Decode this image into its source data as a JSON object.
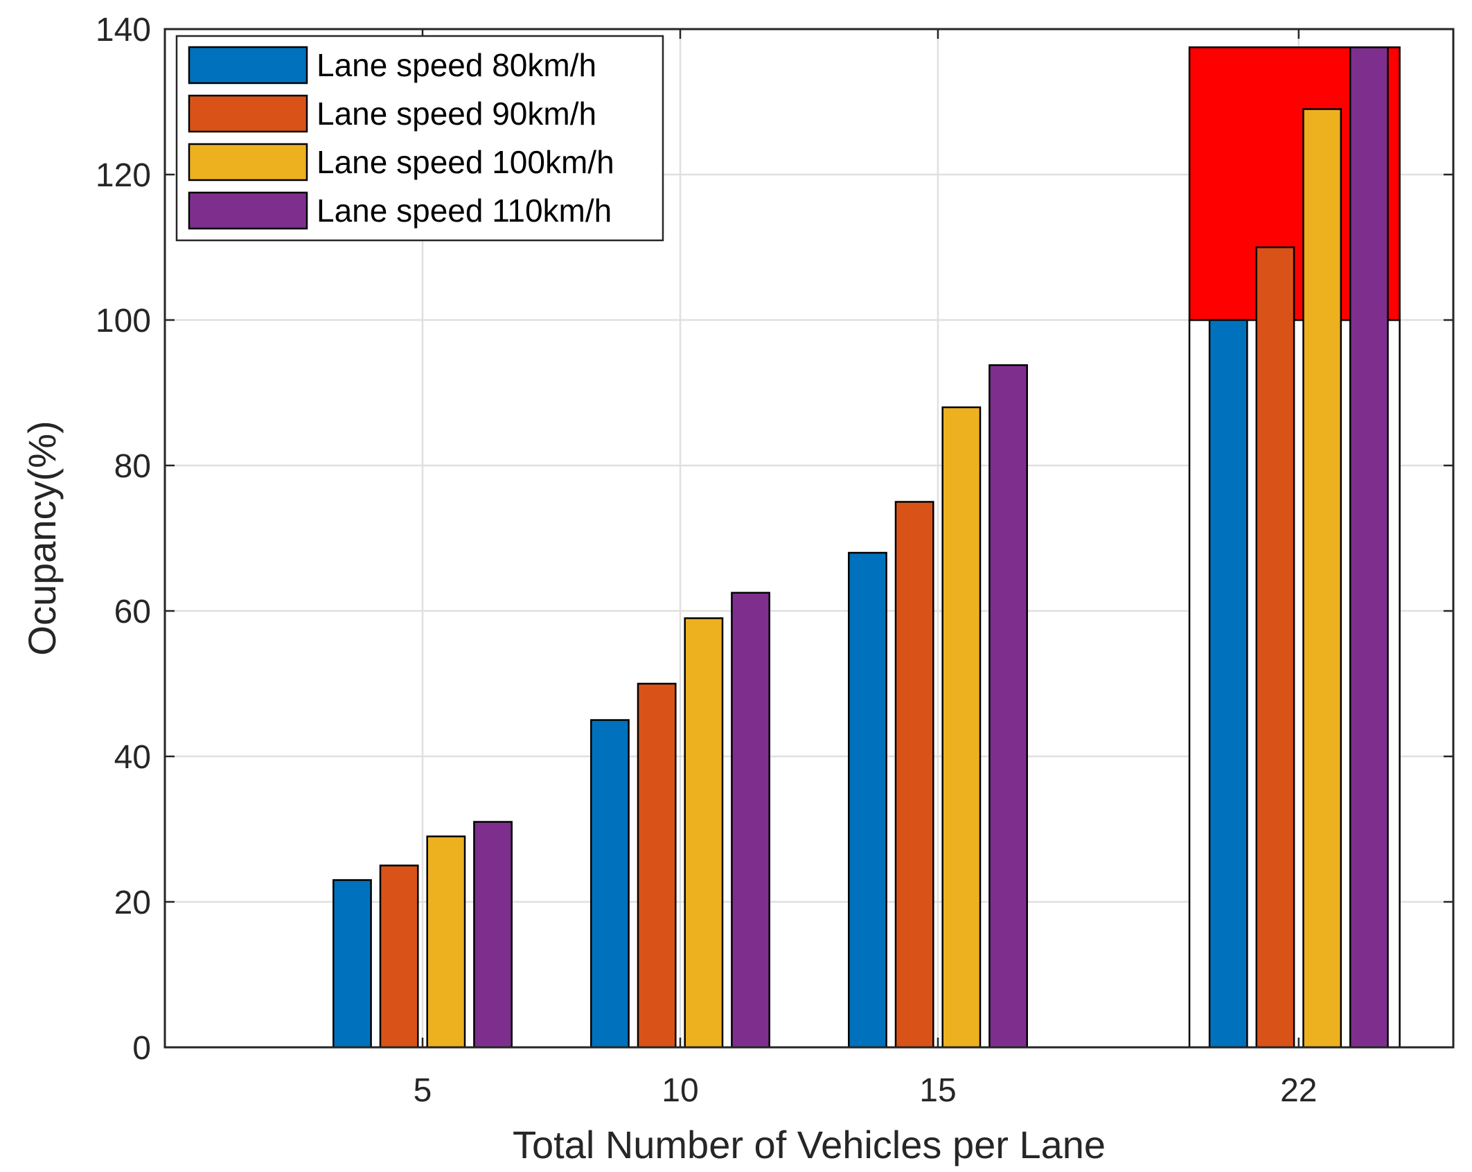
{
  "chart_data": {
    "type": "bar",
    "title": "",
    "xlabel": "Total Number of Vehicles per Lane",
    "ylabel": "Ocupancy(%)",
    "x": [
      5,
      10,
      15,
      22
    ],
    "xlim": [
      0,
      25
    ],
    "ylim": [
      0,
      140
    ],
    "yticks": [
      0,
      20,
      40,
      60,
      80,
      100,
      120,
      140
    ],
    "xticks": [
      5,
      10,
      15,
      22
    ],
    "grid": true,
    "legend_position": "top-left",
    "series": [
      {
        "name": "Lane speed 80km/h",
        "color": "#0072BD",
        "values": [
          23,
          45,
          68,
          100
        ]
      },
      {
        "name": "Lane speed 90km/h",
        "color": "#D95319",
        "values": [
          25,
          50,
          75,
          110
        ]
      },
      {
        "name": "Lane speed 100km/h",
        "color": "#EDB120",
        "values": [
          29,
          59,
          88,
          129
        ]
      },
      {
        "name": "Lane speed 110km/h",
        "color": "#7E2F8E",
        "values": [
          31,
          62.5,
          93.8,
          137.5
        ]
      }
    ],
    "highlight": {
      "color": "#FF0000",
      "x": 22,
      "y_from": 100,
      "y_to": 137.5
    }
  }
}
